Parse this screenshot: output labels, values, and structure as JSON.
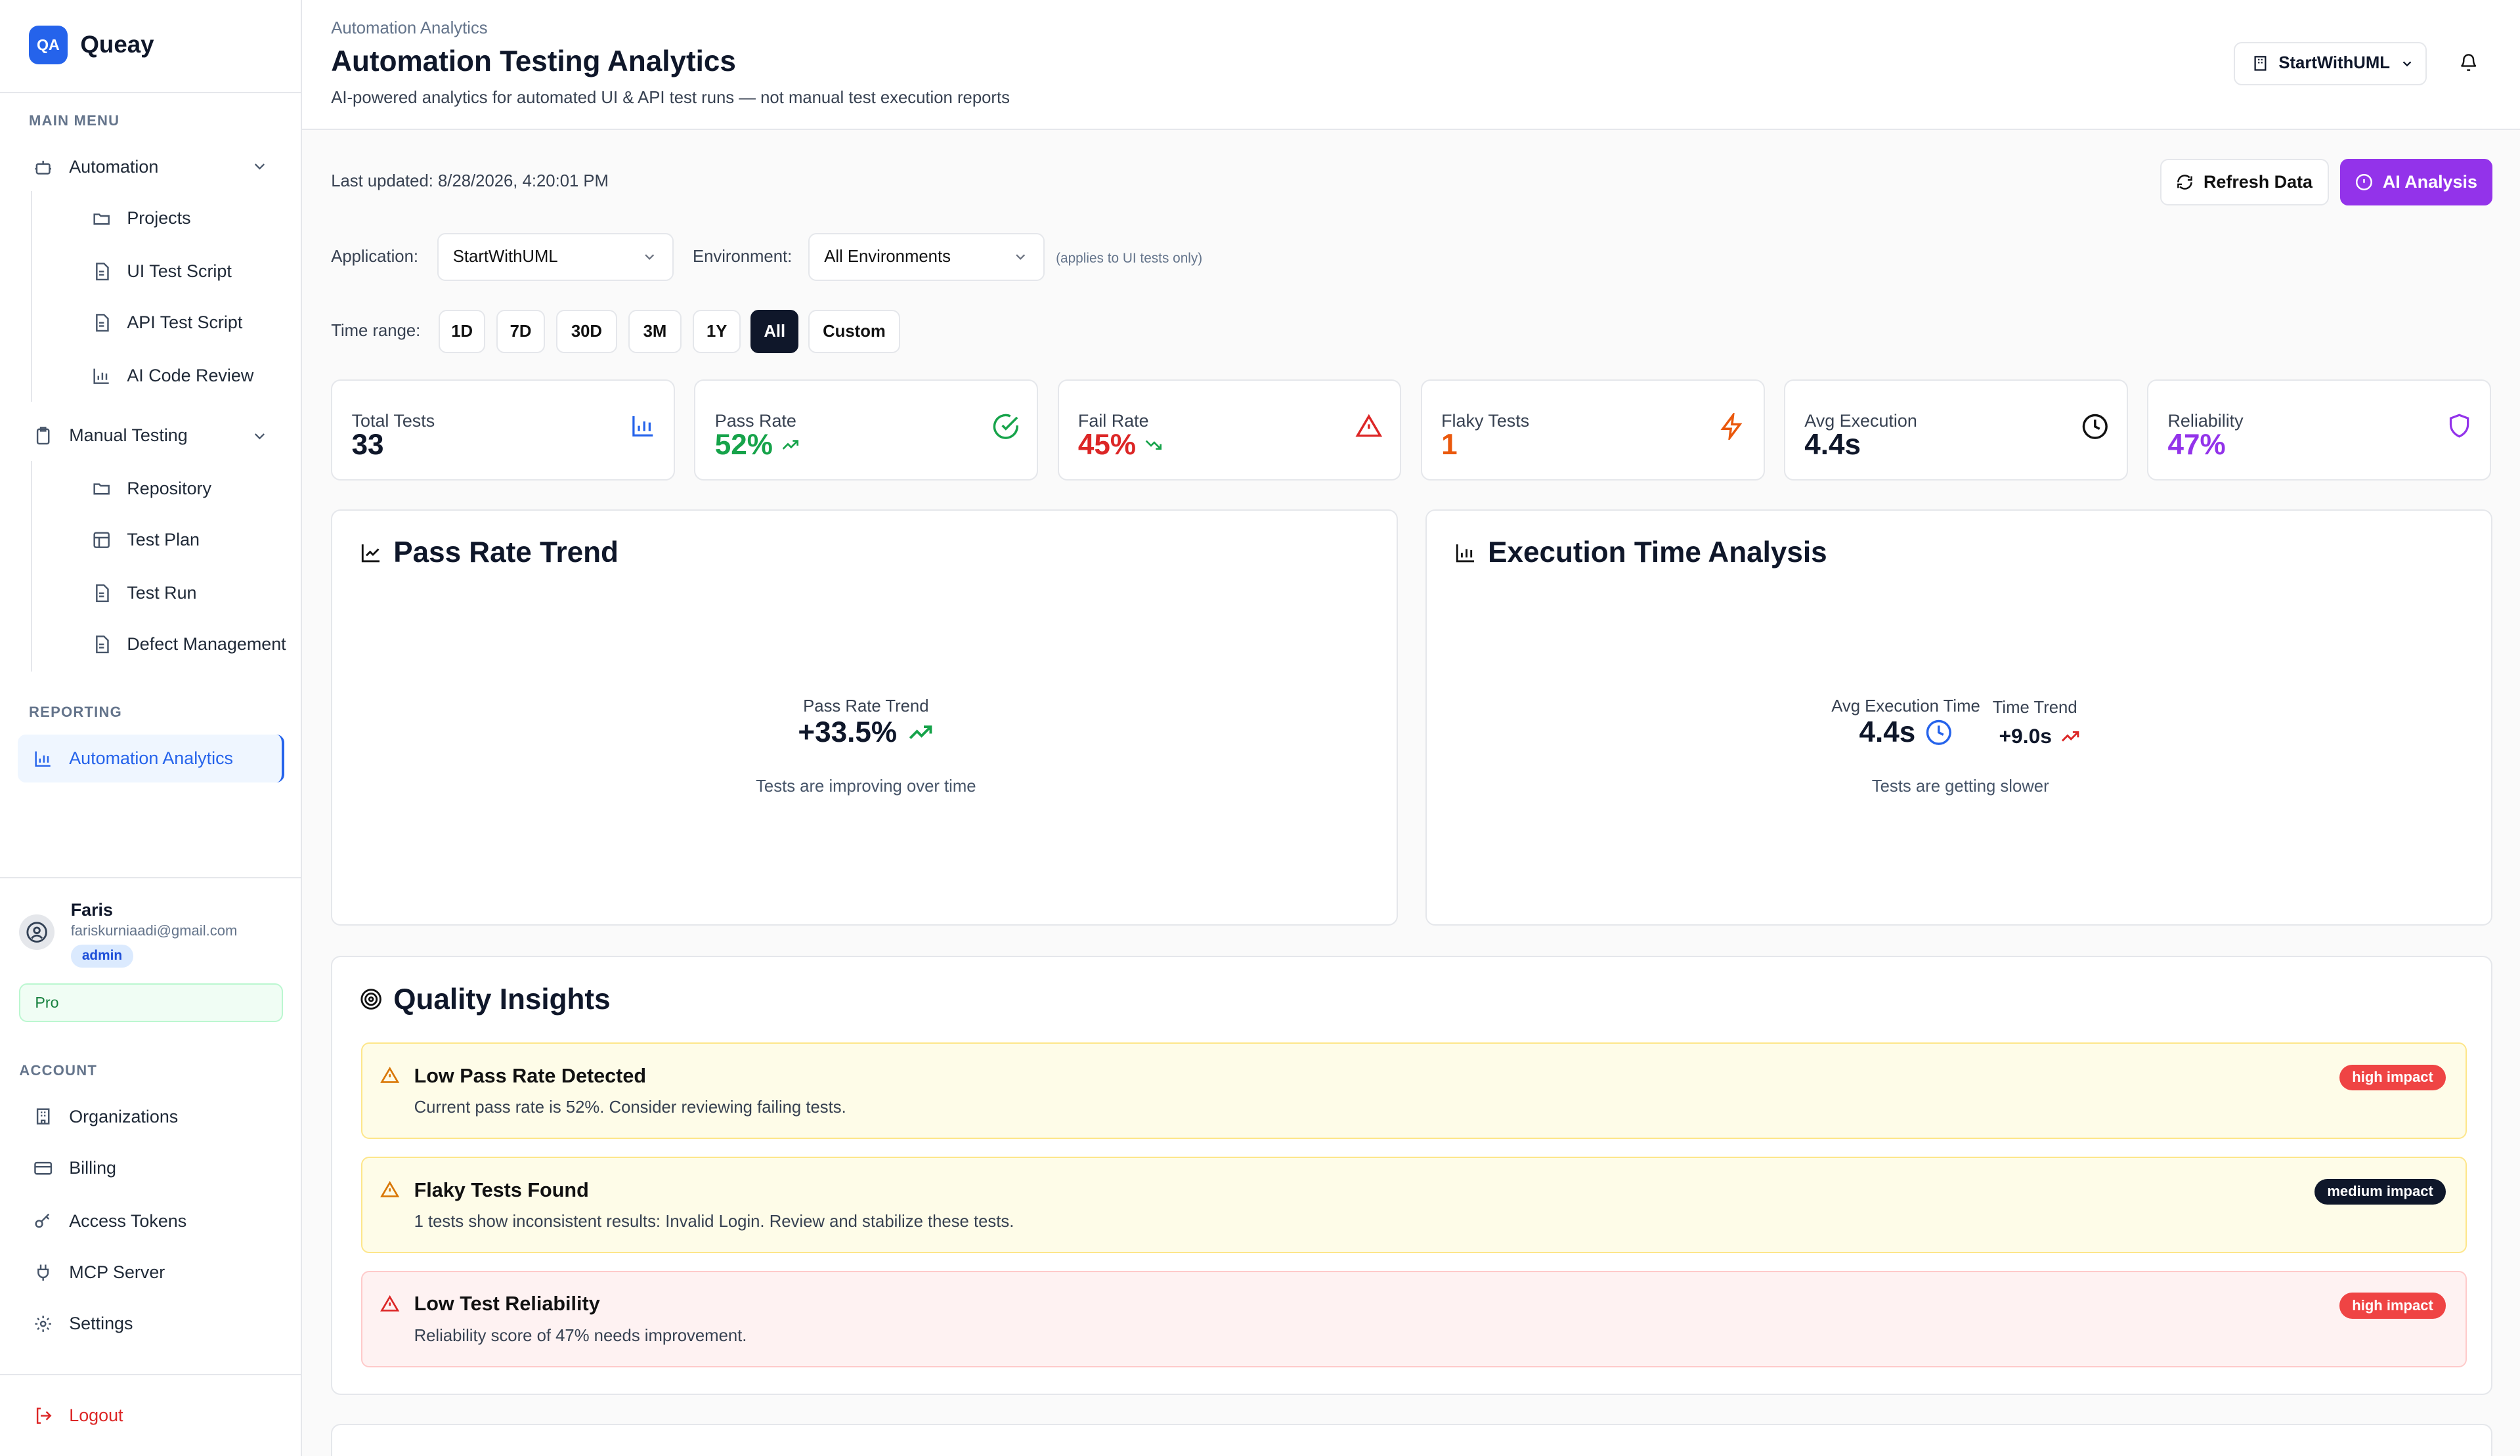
{
  "app": {
    "logo": "QA",
    "name": "Queay"
  },
  "sidebar": {
    "main_menu_label": "MAIN MENU",
    "automation": {
      "label": "Automation",
      "icon": "robot-icon",
      "children": [
        {
          "label": "Projects",
          "icon": "folder-icon"
        },
        {
          "label": "UI Test Script",
          "icon": "file-icon"
        },
        {
          "label": "API Test Script",
          "icon": "file-icon"
        },
        {
          "label": "AI Code Review",
          "icon": "bar-chart-icon"
        }
      ]
    },
    "manual": {
      "label": "Manual Testing",
      "icon": "clipboard-icon",
      "children": [
        {
          "label": "Repository",
          "icon": "folder-icon"
        },
        {
          "label": "Test Plan",
          "icon": "layout-icon"
        },
        {
          "label": "Test Run",
          "icon": "file-icon"
        },
        {
          "label": "Defect Management",
          "icon": "file-icon"
        }
      ]
    },
    "reporting_label": "REPORTING",
    "reporting_item": {
      "label": "Automation Analytics",
      "icon": "bar-chart-icon"
    },
    "user": {
      "name": "Faris",
      "email": "fariskurniaadi@gmail.com",
      "role": "admin",
      "plan": "Pro"
    },
    "account_label": "ACCOUNT",
    "account_items": [
      {
        "label": "Organizations",
        "icon": "building-icon"
      },
      {
        "label": "Billing",
        "icon": "credit-card-icon"
      },
      {
        "label": "Access Tokens",
        "icon": "key-icon"
      },
      {
        "label": "MCP Server",
        "icon": "plug-icon"
      },
      {
        "label": "Settings",
        "icon": "gear-icon"
      }
    ],
    "logout": "Logout"
  },
  "header": {
    "breadcrumb": "Automation Analytics",
    "title": "Automation Testing Analytics",
    "subtitle": "AI-powered analytics for automated UI & API test runs — not manual test execution reports",
    "org": "StartWithUML"
  },
  "toolbar": {
    "last_updated": "Last updated: 8/28/2026, 4:20:01 PM",
    "refresh": "Refresh Data",
    "ai": "AI Analysis"
  },
  "filters": {
    "application_label": "Application:",
    "application_value": "StartWithUML",
    "environment_label": "Environment:",
    "environment_value": "All Environments",
    "environment_note": "(applies to UI tests only)",
    "time_range_label": "Time range:",
    "time_ranges": [
      "1D",
      "7D",
      "30D",
      "3M",
      "1Y",
      "All",
      "Custom"
    ],
    "time_range_selected": "All"
  },
  "stats": [
    {
      "label": "Total Tests",
      "value": "33",
      "color": "#111827",
      "icon": "bar-chart-icon"
    },
    {
      "label": "Pass Rate",
      "value": "52%",
      "color": "#16a34a",
      "icon": "check-circle-icon",
      "trend": "up"
    },
    {
      "label": "Fail Rate",
      "value": "45%",
      "color": "#dc2626",
      "icon": "warning-icon",
      "trend": "down"
    },
    {
      "label": "Flaky Tests",
      "value": "1",
      "color": "#ea580c",
      "icon": "zap-icon"
    },
    {
      "label": "Avg Execution",
      "value": "4.4s",
      "color": "#111827",
      "icon": "clock-icon"
    },
    {
      "label": "Reliability",
      "value": "47%",
      "color": "#9333ea",
      "icon": "shield-icon"
    }
  ],
  "pass_trend": {
    "title": "Pass Rate Trend",
    "label": "Pass Rate Trend",
    "value": "+33.5%",
    "note": "Tests are improving over time"
  },
  "exec_time": {
    "title": "Execution Time Analysis",
    "avg_label": "Avg Execution Time",
    "avg_value": "4.4s",
    "trend_label": "Time Trend",
    "trend_value": "+9.0s",
    "note": "Tests are getting slower"
  },
  "insights": {
    "title": "Quality Insights",
    "items": [
      {
        "title": "Low Pass Rate Detected",
        "desc": "Current pass rate is 52%. Consider reviewing failing tests.",
        "badge": "high impact"
      },
      {
        "title": "Flaky Tests Found",
        "desc": "1 tests show inconsistent results: Invalid Login. Review and stabilize these tests.",
        "badge": "medium impact"
      },
      {
        "title": "Low Test Reliability",
        "desc": "Reliability score of 47% needs improvement.",
        "badge": "high impact"
      }
    ]
  },
  "colors": {
    "primary": "#2563eb",
    "ai": "#9333ea",
    "success": "#16a34a",
    "danger": "#dc2626",
    "warning": "#ea580c"
  }
}
